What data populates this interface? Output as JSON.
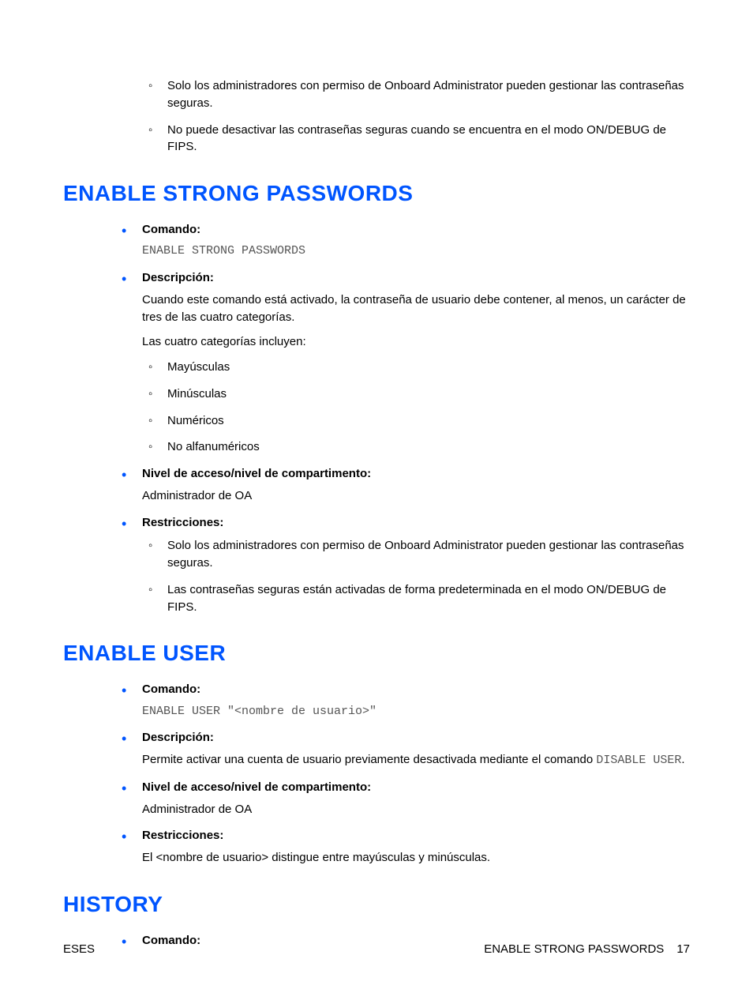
{
  "colors": {
    "heading": "#0055ff",
    "primary_bullet": "#0055ff",
    "body_text": "#000000",
    "code_text": "#555555",
    "background": "#ffffff"
  },
  "typography": {
    "body_font": "Arial",
    "body_size_pt": 11,
    "heading_size_pt": 21,
    "code_font": "Courier New"
  },
  "intro_restrictions": [
    "Solo los administradores con permiso de Onboard Administrator pueden gestionar las contraseñas seguras.",
    "No puede desactivar las contraseñas seguras cuando se encuentra en el modo ON/DEBUG de FIPS."
  ],
  "labels": {
    "comando": "Comando:",
    "descripcion": "Descripción:",
    "nivel": "Nivel de acceso/nivel de compartimento:",
    "restricciones": "Restricciones:"
  },
  "section1": {
    "heading": "ENABLE STRONG PASSWORDS",
    "comando_code": "ENABLE STRONG PASSWORDS",
    "descripcion_intro": "Cuando este comando está activado, la contraseña de usuario debe contener, al menos, un carácter de tres de las cuatro categorías.",
    "descripcion_sub": "Las cuatro categorías incluyen:",
    "categories": [
      "Mayúsculas",
      "Minúsculas",
      "Numéricos",
      "No alfanuméricos"
    ],
    "nivel_value": "Administrador de OA",
    "restricciones": [
      "Solo los administradores con permiso de Onboard Administrator pueden gestionar las contraseñas seguras.",
      "Las contraseñas seguras están activadas de forma predeterminada en el modo ON/DEBUG de FIPS."
    ]
  },
  "section2": {
    "heading": "ENABLE USER",
    "comando_code": "ENABLE USER \"<nombre de usuario>\"",
    "descripcion_pre": "Permite activar una cuenta de usuario previamente desactivada mediante el comando ",
    "descripcion_code": "DISABLE USER",
    "descripcion_post": ".",
    "nivel_value": "Administrador de OA",
    "restricciones_text": "El <nombre de usuario> distingue entre mayúsculas y minúsculas."
  },
  "section3": {
    "heading": "HISTORY"
  },
  "footer": {
    "left": "ESES",
    "right_title": "ENABLE STRONG PASSWORDS",
    "page": "17"
  }
}
